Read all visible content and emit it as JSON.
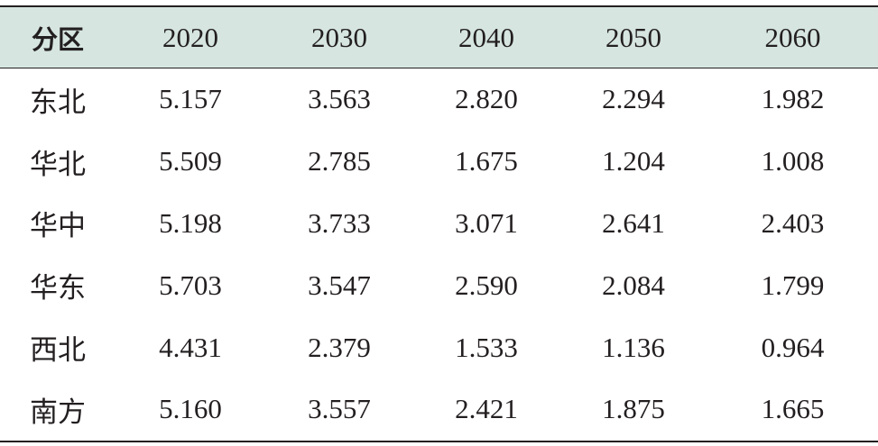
{
  "table": {
    "headers": [
      "分区",
      "2020",
      "2030",
      "2040",
      "2050",
      "2060"
    ],
    "rows": [
      [
        "东北",
        "5.157",
        "3.563",
        "2.820",
        "2.294",
        "1.982"
      ],
      [
        "华北",
        "5.509",
        "2.785",
        "1.675",
        "1.204",
        "1.008"
      ],
      [
        "华中",
        "5.198",
        "3.733",
        "3.071",
        "2.641",
        "2.403"
      ],
      [
        "华东",
        "5.703",
        "3.547",
        "2.590",
        "2.084",
        "1.799"
      ],
      [
        "西北",
        "4.431",
        "2.379",
        "1.533",
        "1.136",
        "0.964"
      ],
      [
        "南方",
        "5.160",
        "3.557",
        "2.421",
        "1.875",
        "1.665"
      ]
    ]
  },
  "colors": {
    "header_background": "#d6e5e0",
    "text": "#231f20",
    "rule": "#231f20"
  }
}
